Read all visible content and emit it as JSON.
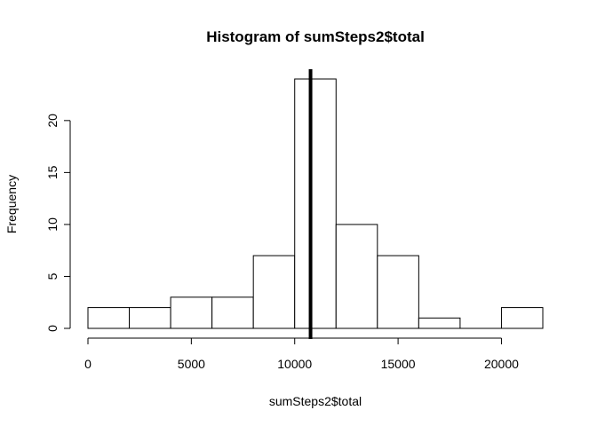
{
  "chart_data": {
    "type": "bar",
    "title": "Histogram of sumSteps2$total",
    "xlabel": "sumSteps2$total",
    "ylabel": "Frequency",
    "bin_edges": [
      0,
      2000,
      4000,
      6000,
      8000,
      10000,
      12000,
      14000,
      16000,
      18000,
      20000,
      22000
    ],
    "values": [
      2,
      2,
      3,
      3,
      7,
      24,
      10,
      7,
      1,
      0,
      2
    ],
    "xlim": [
      0,
      22000
    ],
    "ylim": [
      0,
      24
    ],
    "x_ticks": [
      0,
      5000,
      10000,
      15000,
      20000
    ],
    "x_tick_labels": [
      "0",
      "5000",
      "10000",
      "15000",
      "20000"
    ],
    "y_ticks": [
      0,
      5,
      10,
      15,
      20
    ],
    "y_tick_labels": [
      "0",
      "5",
      "10",
      "15",
      "20"
    ],
    "vertical_line": {
      "x": 10766
    },
    "grid": false,
    "bar_fill": "#ffffff",
    "bar_stroke": "#000000"
  }
}
